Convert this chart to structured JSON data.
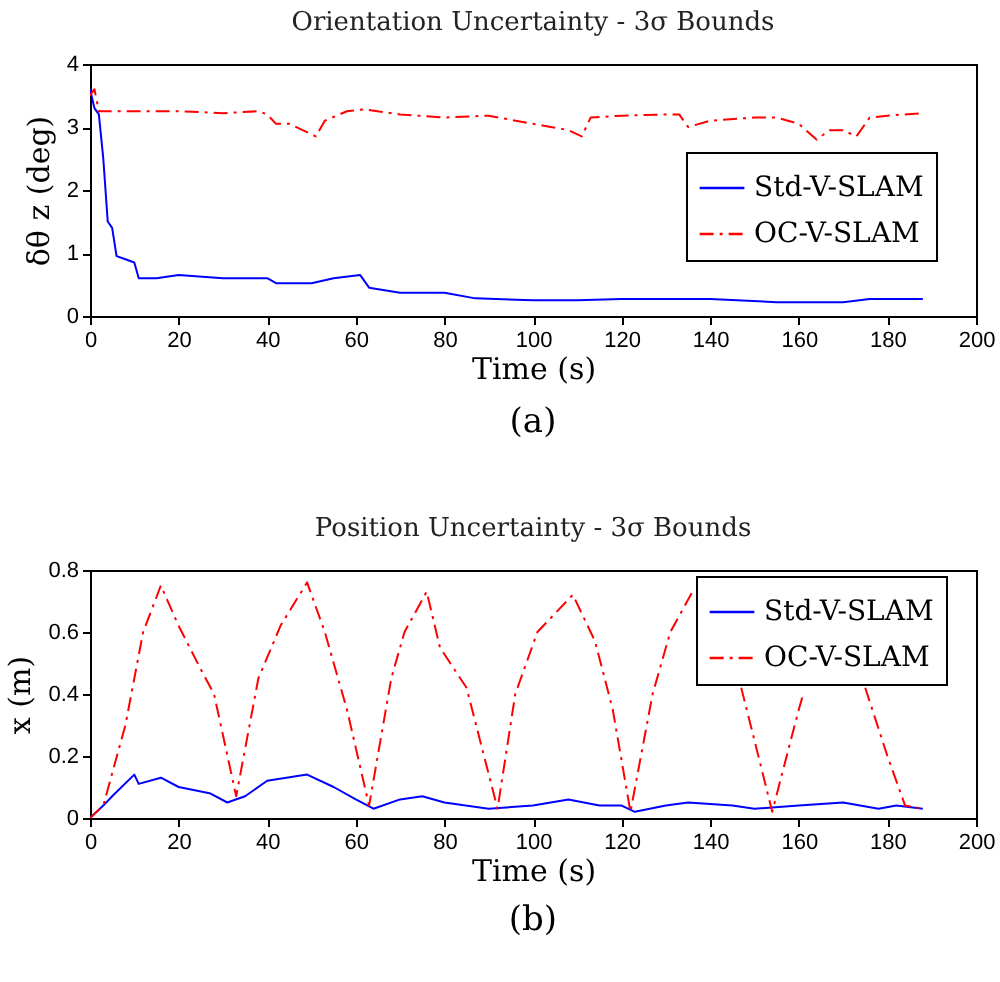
{
  "chart_data": [
    {
      "type": "line",
      "title": "Orientation Uncertainty - 3σ Bounds",
      "xlabel": "Time (s)",
      "ylabel": "δθ z (deg)",
      "xlim": [
        0,
        200
      ],
      "ylim": [
        0,
        4
      ],
      "xticks": [
        0,
        20,
        40,
        60,
        80,
        100,
        120,
        140,
        160,
        180,
        200
      ],
      "yticks": [
        0,
        1,
        2,
        3,
        4
      ],
      "legend": "right",
      "annotations": [
        "(a)"
      ],
      "series": [
        {
          "name": "Std-V-SLAM",
          "color": "#0000ff",
          "line_style": "solid",
          "x": [
            0,
            1,
            2,
            3,
            4,
            5,
            6,
            8,
            10,
            11,
            15,
            20,
            30,
            40,
            42,
            50,
            55,
            61,
            63,
            70,
            80,
            87,
            100,
            110,
            120,
            140,
            155,
            170,
            176,
            188
          ],
          "values": [
            3.6,
            3.3,
            3.2,
            2.5,
            1.5,
            1.4,
            0.95,
            0.9,
            0.85,
            0.6,
            0.6,
            0.65,
            0.6,
            0.6,
            0.52,
            0.52,
            0.6,
            0.65,
            0.45,
            0.37,
            0.37,
            0.28,
            0.25,
            0.25,
            0.27,
            0.27,
            0.22,
            0.22,
            0.27,
            0.27
          ]
        },
        {
          "name": "OC-V-SLAM",
          "color": "#ff0000",
          "line_style": "dashed",
          "x": [
            0,
            1,
            2,
            10,
            20,
            30,
            38,
            40,
            42,
            45,
            48,
            51,
            53,
            58,
            62,
            70,
            80,
            90,
            100,
            104,
            108,
            111,
            113,
            120,
            130,
            133,
            135,
            140,
            150,
            155,
            160,
            164,
            167,
            170,
            173,
            176,
            180,
            188
          ],
          "values": [
            3.5,
            3.6,
            3.25,
            3.25,
            3.25,
            3.22,
            3.25,
            3.2,
            3.05,
            3.05,
            2.95,
            2.85,
            3.1,
            3.25,
            3.28,
            3.2,
            3.15,
            3.18,
            3.05,
            3.0,
            2.95,
            2.85,
            3.15,
            3.18,
            3.2,
            3.2,
            3.0,
            3.1,
            3.15,
            3.15,
            3.05,
            2.8,
            2.95,
            2.95,
            2.85,
            3.15,
            3.18,
            3.22
          ]
        }
      ]
    },
    {
      "type": "line",
      "title": "Position Uncertainty - 3σ Bounds",
      "xlabel": "Time (s)",
      "ylabel": "x (m)",
      "xlim": [
        0,
        200
      ],
      "ylim": [
        0,
        0.8
      ],
      "xticks": [
        0,
        20,
        40,
        60,
        80,
        100,
        120,
        140,
        160,
        180,
        200
      ],
      "yticks": [
        {
          "value": 0,
          "label": "0"
        },
        0.2,
        0.4,
        0.6,
        0.8
      ],
      "legend": "top right",
      "annotations": [
        "(b)"
      ],
      "series": [
        {
          "name": "Std-V-SLAM",
          "color": "#0000ff",
          "line_style": "solid",
          "x": [
            0,
            3,
            5,
            10,
            11,
            16,
            20,
            27,
            31,
            35,
            40,
            49,
            55,
            60,
            64,
            70,
            75,
            80,
            90,
            100,
            108,
            115,
            120,
            123,
            130,
            135,
            145,
            150,
            160,
            170,
            178,
            182,
            188
          ],
          "values": [
            0,
            0.04,
            0.07,
            0.14,
            0.11,
            0.13,
            0.1,
            0.08,
            0.05,
            0.07,
            0.12,
            0.14,
            0.1,
            0.06,
            0.03,
            0.06,
            0.07,
            0.05,
            0.03,
            0.04,
            0.06,
            0.04,
            0.04,
            0.02,
            0.04,
            0.05,
            0.04,
            0.03,
            0.04,
            0.05,
            0.03,
            0.04,
            0.03
          ]
        },
        {
          "name": "OC-V-SLAM",
          "color": "#ff0000",
          "line_style": "dashed",
          "x": [
            0,
            3,
            8,
            12,
            16,
            20,
            25,
            28,
            33,
            38,
            43,
            49,
            53,
            58,
            63,
            68,
            71,
            76,
            79,
            85,
            92,
            96,
            101,
            109,
            114,
            118,
            122,
            127,
            131,
            136,
            140,
            147,
            150,
            154,
            160,
            161,
            166,
            175,
            180,
            184,
            188
          ],
          "values": [
            0,
            0.04,
            0.3,
            0.6,
            0.75,
            0.62,
            0.48,
            0.4,
            0.07,
            0.45,
            0.62,
            0.76,
            0.6,
            0.35,
            0.04,
            0.45,
            0.6,
            0.73,
            0.55,
            0.42,
            0.03,
            0.4,
            0.6,
            0.72,
            0.57,
            0.35,
            0.02,
            0.4,
            0.6,
            0.73,
            null,
            0.42,
            0.25,
            0.02,
            0.35,
            0.4,
            null,
            0.42,
            0.2,
            0.04,
            0.03
          ]
        }
      ]
    }
  ]
}
